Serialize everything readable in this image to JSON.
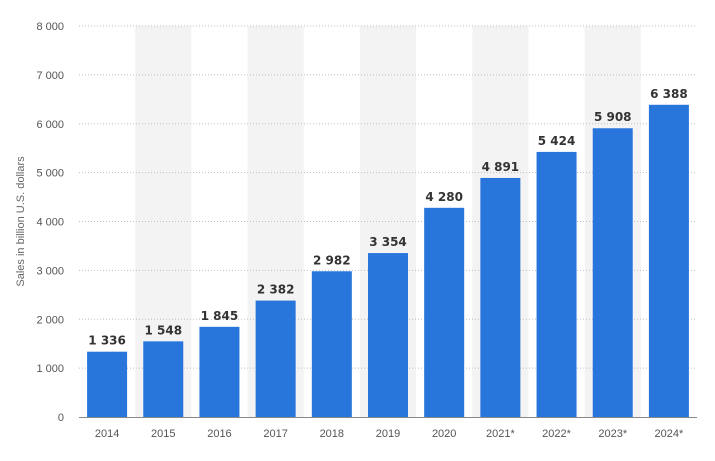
{
  "chart_data": {
    "type": "bar",
    "categories": [
      "2014",
      "2015",
      "2016",
      "2017",
      "2018",
      "2019",
      "2020",
      "2021*",
      "2022*",
      "2023*",
      "2024*"
    ],
    "values": [
      1336,
      1548,
      1845,
      2382,
      2982,
      3354,
      4280,
      4891,
      5424,
      5908,
      6388
    ],
    "value_labels": [
      "1 336",
      "1 548",
      "1 845",
      "2 382",
      "2 982",
      "3 354",
      "4 280",
      "4 891",
      "5 424",
      "5 908",
      "6 388"
    ],
    "ylabel": "Sales in billion U.S. dollars",
    "ylim": [
      0,
      8000
    ],
    "yticks": [
      0,
      1000,
      2000,
      3000,
      4000,
      5000,
      6000,
      7000,
      8000
    ],
    "ytick_labels": [
      "0",
      "1 000",
      "2 000",
      "3 000",
      "4 000",
      "5 000",
      "6 000",
      "7 000",
      "8 000"
    ],
    "grid": true,
    "colors": {
      "bar": "#2875dc",
      "band": "#f3f3f3"
    }
  }
}
